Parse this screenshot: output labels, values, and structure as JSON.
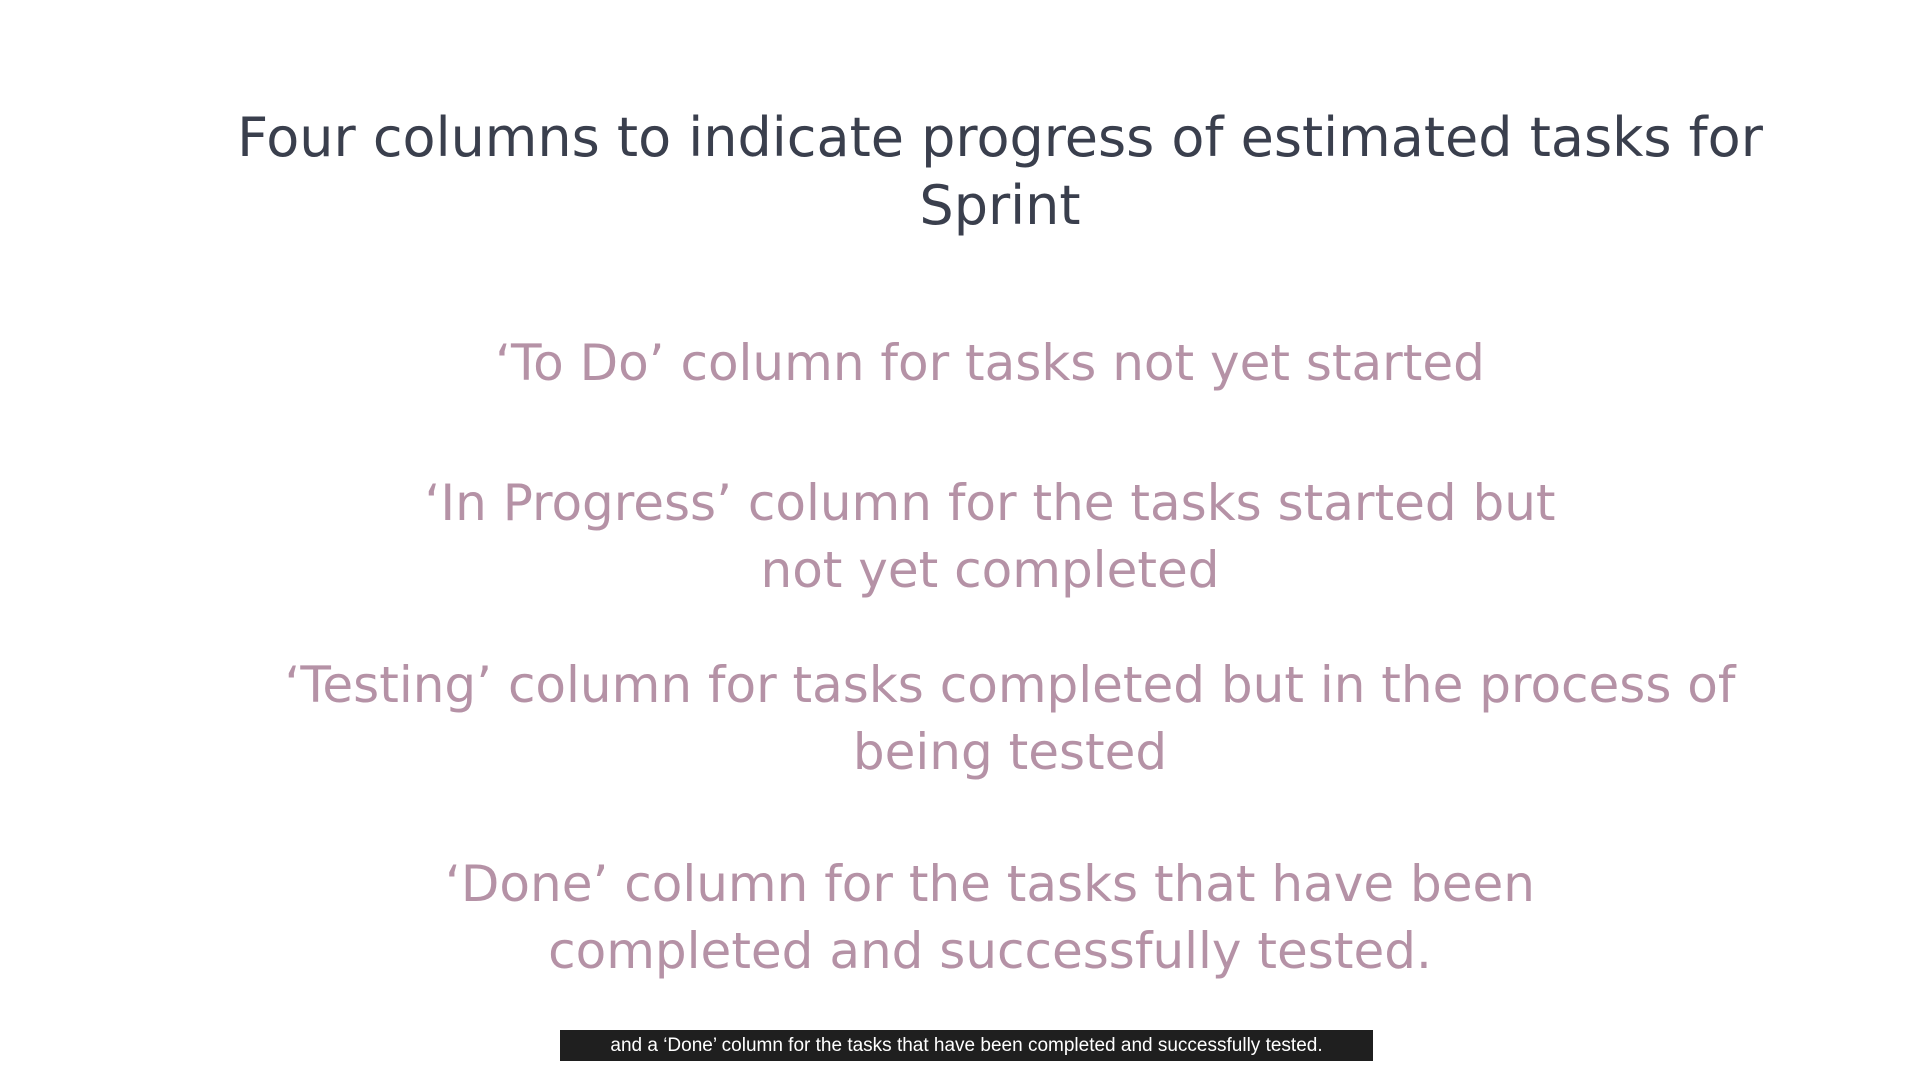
{
  "slide": {
    "title": "Four columns to indicate progress of estimated tasks for Sprint",
    "bullets": [
      {
        "text": "‘To Do’ column for tasks not yet started"
      },
      {
        "text": "‘In Progress’ column for the tasks started but not yet completed"
      },
      {
        "text": "‘Testing’ column for tasks completed but in the process of being tested"
      },
      {
        "text": "‘Done’ column for the tasks that have been completed and successfully tested."
      }
    ]
  },
  "caption": {
    "text": "and a ‘Done’ column for the tasks that have been completed and successfully tested."
  },
  "colors": {
    "title": "#3a3f4d",
    "bullet": "#b592a6",
    "caption_bg": "#1f1f1f",
    "caption_text": "#ffffff"
  }
}
